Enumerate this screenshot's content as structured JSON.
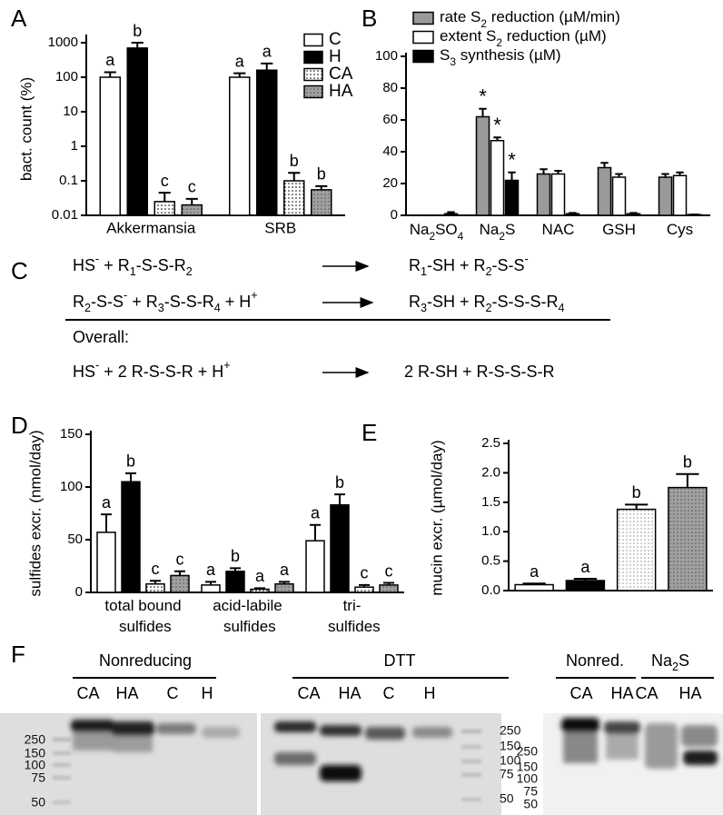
{
  "chart_data": [
    {
      "type": "bar",
      "panel": "A",
      "ylabel": "bact. count (%)",
      "yscale": "log",
      "ylim": [
        0.01,
        1000
      ],
      "yticks": [
        0.01,
        0.1,
        1,
        10,
        100,
        1000
      ],
      "categories": [
        "Akkermansia",
        "SRB"
      ],
      "legend": "top-right",
      "series": [
        {
          "name": "C",
          "fill": "white",
          "values": [
            100,
            100
          ],
          "errors": [
            40,
            30
          ],
          "letters": [
            "a",
            "a"
          ]
        },
        {
          "name": "H",
          "fill": "black",
          "values": [
            700,
            160
          ],
          "errors": [
            300,
            90
          ],
          "letters": [
            "b",
            "a"
          ]
        },
        {
          "name": "CA",
          "fill": "dotted",
          "values": [
            0.025,
            0.1
          ],
          "errors": [
            0.02,
            0.07
          ],
          "letters": [
            "c",
            "b"
          ]
        },
        {
          "name": "HA",
          "fill": "gray-dotted",
          "values": [
            0.02,
            0.055
          ],
          "errors": [
            0.01,
            0.015
          ],
          "letters": [
            "c",
            "b"
          ]
        }
      ]
    },
    {
      "type": "bar",
      "panel": "B",
      "ylim": [
        0,
        100
      ],
      "yticks": [
        0,
        20,
        40,
        60,
        80,
        100
      ],
      "categories": [
        "Na2SO4",
        "Na2S",
        "NAC",
        "GSH",
        "Cys"
      ],
      "legend": "top",
      "series": [
        {
          "name": "rate S2 reduction (µM/min)",
          "fill": "gray",
          "values": [
            0,
            62,
            26,
            30,
            24
          ],
          "errors": [
            0,
            5,
            3,
            3,
            2
          ],
          "letters": [
            null,
            "*",
            null,
            null,
            null
          ]
        },
        {
          "name": "extent S2 reduction (µM)",
          "fill": "white",
          "values": [
            0,
            47,
            26,
            24,
            25
          ],
          "errors": [
            0,
            2,
            2,
            2,
            2
          ],
          "letters": [
            null,
            "*",
            null,
            null,
            null
          ]
        },
        {
          "name": "S3 synthesis (µM)",
          "fill": "black",
          "values": [
            1,
            22,
            1,
            1,
            0.5
          ],
          "errors": [
            1,
            5,
            0.5,
            0.5,
            0
          ],
          "letters": [
            null,
            "*",
            null,
            null,
            null
          ]
        }
      ]
    },
    {
      "type": "bar",
      "panel": "D",
      "ylabel": "sulfides excr. (nmol/day)",
      "ylim": [
        0,
        150
      ],
      "yticks": [
        0,
        50,
        100,
        150
      ],
      "categories": [
        "total bound\nsulfides",
        "acid-labile\nsulfides",
        "tri-\nsulfides"
      ],
      "series": [
        {
          "fill": "white",
          "values": [
            57,
            7,
            49
          ],
          "errors": [
            17,
            3,
            15
          ],
          "letters": [
            "a",
            "a",
            "a"
          ]
        },
        {
          "fill": "black",
          "values": [
            105,
            20,
            83
          ],
          "errors": [
            8,
            3,
            10
          ],
          "letters": [
            "b",
            "b",
            "b"
          ]
        },
        {
          "fill": "dotted",
          "values": [
            8,
            3,
            5
          ],
          "errors": [
            3,
            1,
            2
          ],
          "letters": [
            "c",
            "a",
            "c"
          ]
        },
        {
          "fill": "gray-dotted",
          "values": [
            16,
            8,
            7
          ],
          "errors": [
            4,
            2,
            2
          ],
          "letters": [
            "c",
            "a",
            "c"
          ]
        }
      ]
    },
    {
      "type": "bar",
      "panel": "E",
      "ylabel": "mucin excr. (µmol/day)",
      "ylim": [
        0,
        2.5
      ],
      "yticks": [
        {
          "value": 0,
          "label": "0.0"
        },
        0.5,
        {
          "value": 1,
          "label": "1.0"
        },
        1.5,
        {
          "value": 2,
          "label": "2.0"
        },
        2.5
      ],
      "categories": [
        null,
        null,
        null,
        null
      ],
      "series": [
        {
          "fills": [
            "white",
            "black",
            "light-dotted",
            "gray-dotted"
          ],
          "values": [
            0.1,
            0.17,
            1.38,
            1.75
          ],
          "errors": [
            0.02,
            0.03,
            0.08,
            0.23
          ],
          "letters": [
            "a",
            "a",
            "b",
            "b"
          ]
        }
      ]
    }
  ],
  "reactions": {
    "panel": "C",
    "rows": [
      {
        "left": "HS- + R1-S-S-R2",
        "right": "R1-SH + R2-S-S-"
      },
      {
        "left": "R2-S-S- + R3-S-S-R4 + H+",
        "right": "R3-SH + R2-S-S-S-R4"
      }
    ],
    "overall_label": "Overall:",
    "overall": {
      "left": "HS- + 2 R-S-S-R + H+",
      "right": "2 R-SH + R-S-S-S-R"
    }
  },
  "blots": {
    "panel": "F",
    "gels": [
      {
        "headers": [
          "Nonreducing"
        ],
        "lanes": [
          "CA",
          "HA",
          "C",
          "H"
        ],
        "markers": [
          250,
          150,
          100,
          75,
          50
        ]
      },
      {
        "headers": [
          "DTT"
        ],
        "lanes": [
          "CA",
          "HA",
          "C",
          "H"
        ],
        "markers": [
          250,
          150,
          100,
          75,
          50
        ]
      },
      {
        "headers": [
          "Nonred.",
          "Na2S"
        ],
        "lanes": [
          "CA",
          "HA",
          "CA",
          "HA"
        ],
        "markers": [
          250,
          150,
          100,
          75,
          50
        ]
      }
    ]
  }
}
